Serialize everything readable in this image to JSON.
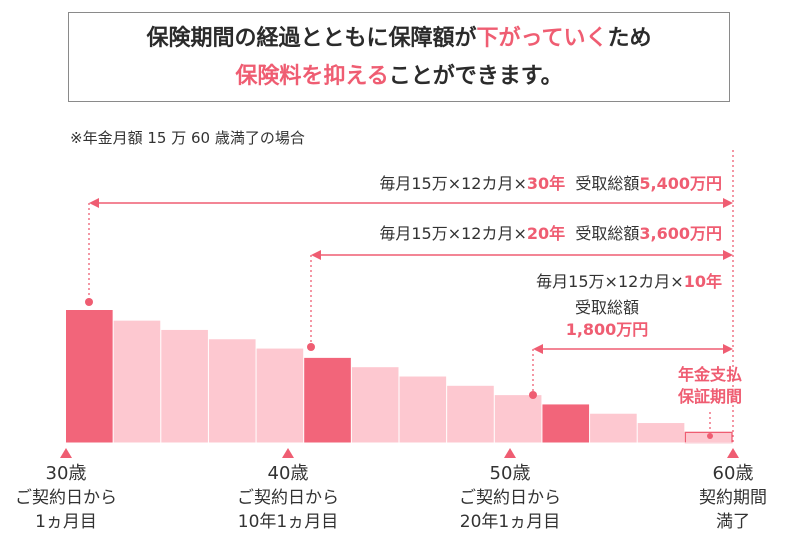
{
  "headline": {
    "line1_a": "保険期間の経過とともに保障額が",
    "line1_b": "下がっていく",
    "line1_c": "ため",
    "line2_a": "保険料を抑える",
    "line2_b": "ことができます。"
  },
  "note": "※年金月額 15 万 60 歳満了の場合",
  "ranges": [
    {
      "prefix": "毎月15万×12カ月×",
      "years": "30年",
      "mid": "受取総額",
      "total": "5,400万円"
    },
    {
      "prefix": "毎月15万×12カ月×",
      "years": "20年",
      "mid": "受取総額",
      "total": "3,600万円"
    },
    {
      "prefix": "毎月15万×12カ月×",
      "years": "10年",
      "mid": "受取総額",
      "total": "1,800万円"
    }
  ],
  "guarantee": {
    "line1": "年金支払",
    "line2": "保証期間"
  },
  "axis_labels": [
    {
      "age": "30歳",
      "l1": "ご契約日から",
      "l2": "1ヵ月目"
    },
    {
      "age": "40歳",
      "l1": "ご契約日から",
      "l2": "10年1ヵ月目"
    },
    {
      "age": "50歳",
      "l1": "ご契約日から",
      "l2": "20年1ヵ月目"
    },
    {
      "age": "60歳",
      "l1": "契約期間",
      "l2": "満了"
    }
  ],
  "chart_data": {
    "type": "bar",
    "values": [
      100,
      92,
      85,
      78,
      71,
      64,
      57,
      50,
      43,
      36,
      29,
      22,
      15,
      8
    ],
    "highlight_index": [
      0,
      5,
      10
    ],
    "guarantee_index": 13
  },
  "colors": {
    "accent": "#ef5d72",
    "bar_light": "#fdc8d0",
    "bar_dark": "#f2657a"
  }
}
